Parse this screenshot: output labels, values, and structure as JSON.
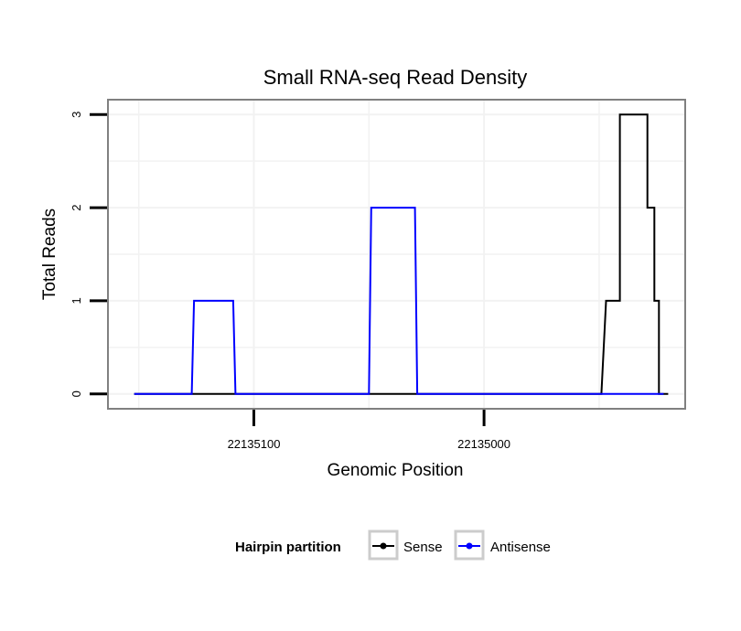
{
  "chart_data": {
    "type": "line",
    "title": "Small RNA-seq Read Density",
    "xlabel": "Genomic Position",
    "ylabel": "Total Reads",
    "x_reversed": true,
    "xlim": [
      22135163,
      22134913
    ],
    "ylim": [
      -0.15,
      3.15
    ],
    "x_ticks": [
      22135100,
      22135000
    ],
    "x_tick_labels": [
      "22135100",
      "22135000"
    ],
    "y_ticks": [
      0,
      1,
      2,
      3
    ],
    "y_tick_labels": [
      "0",
      "1",
      "2",
      "3"
    ],
    "grid": true,
    "legend": {
      "title": "Hairpin partition",
      "position": "bottom",
      "entries": [
        "Sense",
        "Antisense"
      ]
    },
    "series": [
      {
        "name": "Sense",
        "color": "#000000",
        "x": [
          22135152,
          22134949,
          22134947,
          22134941,
          22134941,
          22134929,
          22134929,
          22134926,
          22134926,
          22134924,
          22134924,
          22134922,
          22134922,
          22134920
        ],
        "y": [
          0,
          0,
          1,
          1,
          3,
          3,
          2,
          2,
          1,
          1,
          0,
          0,
          0,
          0
        ]
      },
      {
        "name": "Antisense",
        "color": "#0000ff",
        "x": [
          22135152,
          22135127,
          22135126,
          22135109,
          22135108,
          22135050,
          22135049,
          22135030,
          22135029,
          22134922
        ],
        "y": [
          0,
          0,
          1,
          1,
          0,
          0,
          2,
          2,
          0,
          0
        ]
      }
    ]
  }
}
